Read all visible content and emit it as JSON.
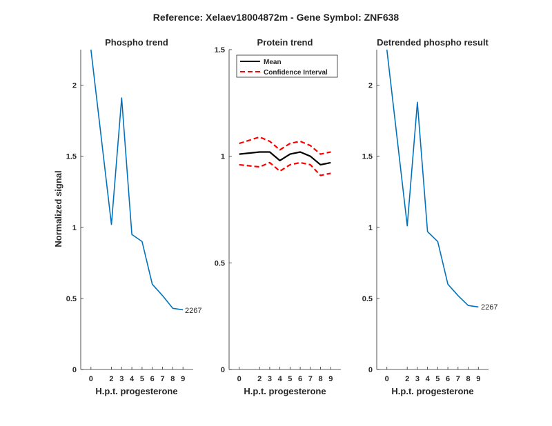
{
  "figure": {
    "title": "Reference:  Xelaev18004872m - Gene Symbol:  ZNF638"
  },
  "chart_data": [
    {
      "type": "line",
      "title": "Phospho trend",
      "xlabel": "H.p.t. progesterone",
      "ylabel": "Normalized signal",
      "x": [
        0,
        2,
        3,
        4,
        5,
        6,
        7,
        8,
        9
      ],
      "xticks": [
        "0",
        "2",
        "3",
        "4",
        "5",
        "6",
        "7",
        "8",
        "9"
      ],
      "ylim": [
        0,
        2.25
      ],
      "yticks": [
        "0",
        "0.5",
        "1",
        "1.5",
        "2"
      ],
      "series": [
        {
          "values": [
            2.25,
            1.02,
            1.91,
            0.95,
            0.9,
            0.6,
            0.52,
            0.43,
            0.42
          ],
          "color": "#0072BD"
        }
      ],
      "annotation": "2267",
      "grid": false
    },
    {
      "type": "line",
      "title": "Protein trend",
      "xlabel": "H.p.t. progesterone",
      "ylabel": "",
      "x": [
        0,
        2,
        3,
        4,
        5,
        6,
        7,
        8,
        9
      ],
      "xticks": [
        "0",
        "2",
        "3",
        "4",
        "5",
        "6",
        "7",
        "8",
        "9"
      ],
      "ylim": [
        0,
        1.5
      ],
      "yticks": [
        "0",
        "0.5",
        "1",
        "1.5"
      ],
      "series": [
        {
          "name": "Mean",
          "values": [
            1.01,
            1.02,
            1.02,
            0.98,
            1.01,
            1.02,
            1.0,
            0.96,
            0.97
          ],
          "color": "#000000",
          "style": "solid"
        },
        {
          "name": "Confidence Interval",
          "values": [
            1.06,
            1.09,
            1.07,
            1.03,
            1.06,
            1.07,
            1.05,
            1.01,
            1.02
          ],
          "color": "#ff0000",
          "style": "dashed"
        },
        {
          "values": [
            0.96,
            0.95,
            0.97,
            0.93,
            0.96,
            0.97,
            0.96,
            0.91,
            0.92
          ],
          "color": "#ff0000",
          "style": "dashed"
        }
      ],
      "legend": {
        "placement": "top-left",
        "entries": [
          "Mean",
          "Confidence Interval"
        ]
      },
      "grid": false
    },
    {
      "type": "line",
      "title": "Detrended phospho result",
      "xlabel": "H.p.t. progesterone",
      "ylabel": "",
      "x": [
        0,
        2,
        3,
        4,
        5,
        6,
        7,
        8,
        9
      ],
      "xticks": [
        "0",
        "2",
        "3",
        "4",
        "5",
        "6",
        "7",
        "8",
        "9"
      ],
      "ylim": [
        0,
        2.25
      ],
      "yticks": [
        "0",
        "0.5",
        "1",
        "1.5",
        "2"
      ],
      "series": [
        {
          "values": [
            2.25,
            1.01,
            1.88,
            0.97,
            0.9,
            0.6,
            0.52,
            0.45,
            0.44
          ],
          "color": "#0072BD"
        }
      ],
      "annotation": "2267",
      "grid": false
    }
  ]
}
